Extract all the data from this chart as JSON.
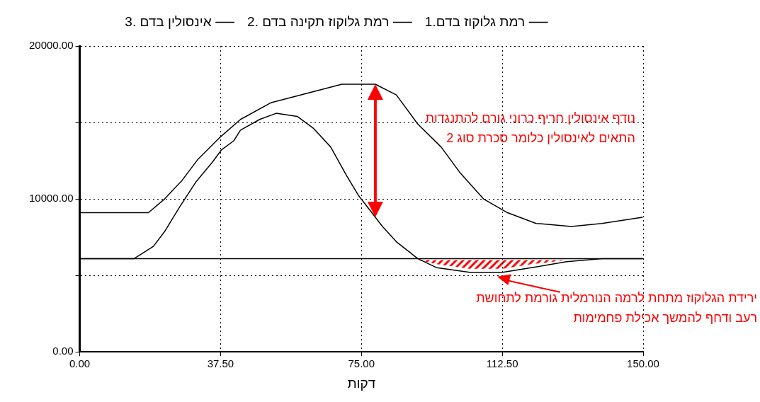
{
  "chart_data": {
    "type": "line",
    "xlabel": "דקות",
    "xlim": [
      0,
      150
    ],
    "xticks": [
      {
        "value": 0,
        "label": "0.00"
      },
      {
        "value": 37.5,
        "label": "37.50"
      },
      {
        "value": 75,
        "label": "75.00"
      },
      {
        "value": 112.5,
        "label": "112.50"
      },
      {
        "value": 150,
        "label": "150.00"
      }
    ],
    "ylim": [
      0,
      20000
    ],
    "yticks": [
      {
        "value": 0,
        "label": "0.00"
      },
      {
        "value": 5000,
        "label": null
      },
      {
        "value": 10000,
        "label": "10000.00"
      },
      {
        "value": 15000,
        "label": null
      },
      {
        "value": 20000,
        "label": "20000.00"
      }
    ],
    "grid": true,
    "legend": "top",
    "marker": "none",
    "line_style": "solid",
    "series": [
      {
        "name": "1.רמת גלוקוז בדם",
        "color": "#000000",
        "x": [
          0,
          14.5,
          19.6,
          22.7,
          26.4,
          30.9,
          35.3,
          37.7,
          41,
          42.8,
          47.9,
          52.3,
          57.9,
          62.3,
          66.8,
          71.1,
          74.3,
          76.2,
          80.6,
          84.3,
          90,
          95.1,
          103.8,
          112.6,
          120.2,
          129.6,
          139,
          149.8
        ],
        "values": [
          6100,
          6100,
          6900,
          7900,
          9400,
          11100,
          12400,
          13200,
          13800,
          14500,
          15200,
          15600,
          15400,
          14600,
          13400,
          11500,
          10200,
          9600,
          8200,
          7200,
          6100,
          5500,
          5200,
          5200,
          5500,
          5900,
          6100,
          6100
        ]
      },
      {
        "name": "2. רמת גלוקוז תקינה בדם",
        "color": "#000000",
        "x": [
          0,
          150
        ],
        "values": [
          6100,
          6100
        ]
      },
      {
        "name": "3. אינסולין בדם",
        "color": "#000000",
        "x": [
          0,
          18.3,
          22.6,
          27.2,
          31.5,
          37.2,
          42.8,
          51,
          60.4,
          69.8,
          77.4,
          78.7,
          84.3,
          90,
          96.2,
          101.3,
          107.5,
          113.9,
          121.5,
          130.9,
          139,
          149.8
        ],
        "values": [
          9100,
          9100,
          10000,
          11200,
          12600,
          14000,
          15200,
          16300,
          16900,
          17500,
          17500,
          17500,
          16800,
          14900,
          13400,
          11700,
          10000,
          9100,
          8400,
          8200,
          8400,
          8800
        ]
      }
    ],
    "annotations": [
      "נודף אינסולין חריף כרוני גורם להתנגדות התאים לאינסולין כלומר סכרת סוג 2",
      {
        "text": "ירידת הגלוקוז מתחת לרמה הנורמלית גורמת לתחושת רעב ודחף להמשך אכילת פחמימות",
        "x": 110,
        "y": 5200
      }
    ]
  }
}
